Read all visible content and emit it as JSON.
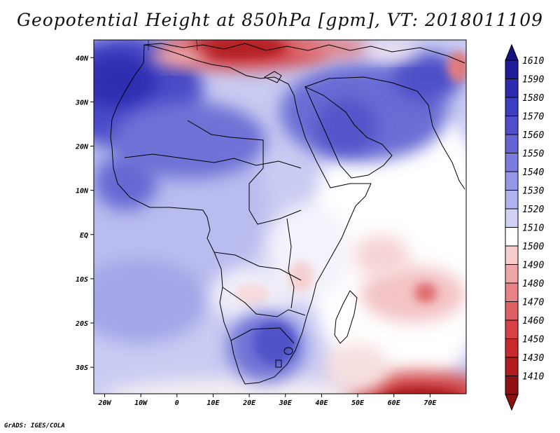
{
  "title": "Geopotential Height at 850hPa [gpm], VT: 2018011109",
  "footer": "GrADS: IGES/COLA",
  "map": {
    "lat_labels": [
      "40N",
      "30N",
      "20N",
      "10N",
      "EQ",
      "10S",
      "20S",
      "30S"
    ],
    "lat_values": [
      40,
      30,
      20,
      10,
      0,
      -10,
      -20,
      -30
    ],
    "lon_labels": [
      "20W",
      "10W",
      "0",
      "10E",
      "20E",
      "30E",
      "40E",
      "50E",
      "60E",
      "70E"
    ],
    "lon_values": [
      -20,
      -10,
      0,
      10,
      20,
      30,
      40,
      50,
      60,
      70
    ],
    "extent": {
      "lon_min": -23,
      "lon_max": 80,
      "lat_min": -36,
      "lat_max": 44
    }
  },
  "colorbar": {
    "top_label": "1610",
    "levels": [
      "1590",
      "1580",
      "1570",
      "1560",
      "1550",
      "1540",
      "1530",
      "1520",
      "1510",
      "1500",
      "1490",
      "1480",
      "1470",
      "1460",
      "1450",
      "1430",
      "1410"
    ],
    "colors": [
      "#1e1d9c",
      "#2b2bb0",
      "#3c3dbf",
      "#4f50c9",
      "#6365d2",
      "#7a7ddb",
      "#9497e4",
      "#b0b3ed",
      "#cfd1f5",
      "#ffffff",
      "#f6cccd",
      "#efa6a8",
      "#e78285",
      "#df6064",
      "#d64145",
      "#c92a2e",
      "#b01c20",
      "#8e1013"
    ],
    "color_top": "#15137e",
    "color_bottom": "#8e1013"
  }
}
